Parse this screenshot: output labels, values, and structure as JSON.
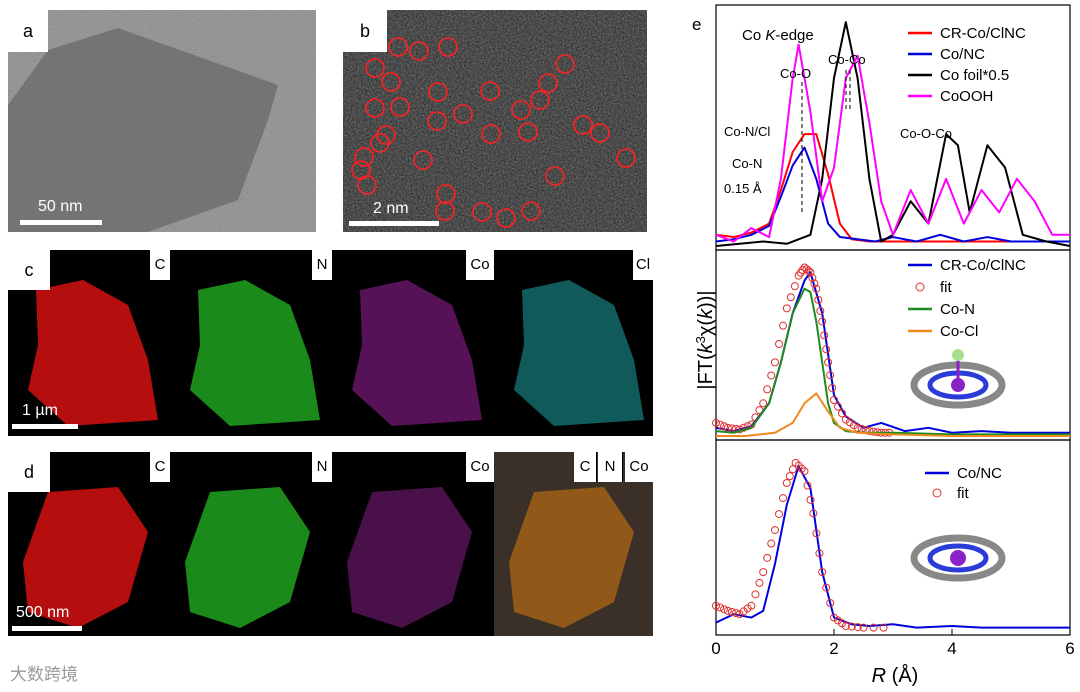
{
  "panels": {
    "a": {
      "label": "a",
      "scale": "50 nm"
    },
    "b": {
      "label": "b",
      "scale": "2 nm"
    },
    "c": {
      "label": "c",
      "scale": "1 µm",
      "maps": [
        "C",
        "N",
        "Co",
        "Cl"
      ]
    },
    "d": {
      "label": "d",
      "scale": "500 nm",
      "maps": [
        "C",
        "N",
        "Co"
      ],
      "overlay": [
        "C",
        "N",
        "Co"
      ]
    },
    "e": {
      "label": "e"
    }
  },
  "colors": {
    "cr": "#ff0000",
    "conc": "#0000dd",
    "foil": "#000000",
    "cooh": "#ff00ff",
    "con": "#1f8a1f",
    "cocl": "#f08a1c",
    "fit": "#e03030"
  },
  "chart_data": {
    "type": "line",
    "title": "Co K-edge",
    "xlabel": "R (Å)",
    "ylabel": "|FT(k³χ(k))|",
    "xlim": [
      0,
      6
    ],
    "xticks": [
      "0",
      "2",
      "4",
      "6"
    ],
    "subplots": [
      {
        "name": "top",
        "legend": [
          "CR-Co/ClNC",
          "Co/NC",
          "Co foil*0.5",
          "CoOOH"
        ],
        "annotations": [
          "Co-O",
          "Co-Co",
          "Co-N/Cl",
          "Co-N",
          "0.15 Å",
          "Co-O-Co"
        ],
        "series": [
          {
            "name": "CR-Co/ClNC",
            "color": "cr",
            "x": [
              0,
              0.3,
              0.6,
              0.9,
              1.1,
              1.3,
              1.5,
              1.7,
              1.9,
              2.1,
              2.3,
              2.6,
              3.0,
              3.5,
              4.0,
              4.5,
              5.0,
              5.5,
              6.0
            ],
            "y": [
              0.05,
              0.04,
              0.06,
              0.1,
              0.25,
              0.42,
              0.5,
              0.5,
              0.32,
              0.1,
              0.03,
              0.02,
              0.02,
              0.02,
              0.02,
              0.02,
              0.02,
              0.02,
              0.02
            ]
          },
          {
            "name": "Co/NC",
            "color": "conc",
            "x": [
              0,
              0.3,
              0.6,
              0.9,
              1.1,
              1.3,
              1.5,
              1.7,
              1.9,
              2.1,
              2.4,
              2.7,
              3.0,
              3.4,
              3.8,
              4.2,
              4.6,
              5.0,
              5.5,
              6.0
            ],
            "y": [
              0.02,
              0.03,
              0.05,
              0.09,
              0.22,
              0.36,
              0.44,
              0.3,
              0.1,
              0.04,
              0.03,
              0.02,
              0.04,
              0.02,
              0.05,
              0.02,
              0.04,
              0.02,
              0.02,
              0.02
            ]
          },
          {
            "name": "Co foil*0.5",
            "color": "foil",
            "x": [
              0,
              0.4,
              0.8,
              1.2,
              1.6,
              1.8,
              2.0,
              2.2,
              2.4,
              2.6,
              2.8,
              3.0,
              3.3,
              3.6,
              3.9,
              4.1,
              4.3,
              4.6,
              4.9,
              5.2,
              5.6,
              6.0
            ],
            "y": [
              0.0,
              0.01,
              0.02,
              0.01,
              0.05,
              0.3,
              0.75,
              1.0,
              0.75,
              0.3,
              0.02,
              0.05,
              0.2,
              0.1,
              0.5,
              0.45,
              0.15,
              0.45,
              0.35,
              0.05,
              0.02,
              0.0
            ]
          },
          {
            "name": "CoOOH",
            "color": "cooh",
            "x": [
              0,
              0.3,
              0.6,
              0.9,
              1.1,
              1.3,
              1.4,
              1.6,
              1.8,
              2.0,
              2.2,
              2.4,
              2.6,
              2.8,
              3.0,
              3.3,
              3.6,
              3.9,
              4.2,
              4.5,
              4.8,
              5.1,
              5.4,
              5.7,
              6.0
            ],
            "y": [
              0.05,
              0.02,
              0.08,
              0.04,
              0.3,
              0.75,
              0.9,
              0.6,
              0.2,
              0.35,
              0.75,
              0.85,
              0.55,
              0.2,
              0.05,
              0.25,
              0.1,
              0.3,
              0.1,
              0.25,
              0.15,
              0.3,
              0.2,
              0.05,
              0.05
            ]
          }
        ]
      },
      {
        "name": "middle",
        "legend": [
          "CR-Co/ClNC",
          "fit",
          "Co-N",
          "Co-Cl"
        ],
        "series": [
          {
            "name": "CR-Co/ClNC",
            "color": "conc",
            "x": [
              0,
              0.3,
              0.6,
              0.9,
              1.1,
              1.3,
              1.5,
              1.6,
              1.8,
              2.0,
              2.2,
              2.5,
              2.8,
              3.2,
              3.6,
              4.0,
              4.5,
              5.0,
              5.5,
              6.0
            ],
            "y": [
              0.05,
              0.03,
              0.06,
              0.2,
              0.45,
              0.75,
              0.95,
              1.0,
              0.75,
              0.25,
              0.12,
              0.05,
              0.08,
              0.03,
              0.05,
              0.02,
              0.03,
              0.02,
              0.02,
              0.02
            ]
          },
          {
            "name": "fit",
            "color": "fit",
            "x": [
              0,
              0.2,
              0.4,
              0.6,
              0.8,
              1.0,
              1.2,
              1.4,
              1.5,
              1.6,
              1.7,
              1.8,
              1.9,
              2.0,
              2.2,
              2.4,
              2.6,
              2.8,
              3.0
            ],
            "y": [
              0.08,
              0.05,
              0.04,
              0.07,
              0.2,
              0.45,
              0.78,
              0.98,
              1.03,
              1.0,
              0.9,
              0.7,
              0.45,
              0.22,
              0.1,
              0.05,
              0.03,
              0.02,
              0.02
            ]
          },
          {
            "name": "Co-N",
            "color": "con",
            "x": [
              0,
              0.3,
              0.6,
              0.9,
              1.1,
              1.3,
              1.5,
              1.6,
              1.7,
              1.8,
              1.9,
              2.0,
              2.2,
              2.5,
              3.0,
              4.0,
              6.0
            ],
            "y": [
              0.03,
              0.02,
              0.05,
              0.2,
              0.45,
              0.75,
              0.9,
              0.88,
              0.7,
              0.45,
              0.2,
              0.08,
              0.03,
              0.02,
              0.02,
              0.01,
              0.01
            ]
          },
          {
            "name": "Co-Cl",
            "color": "cocl",
            "x": [
              0,
              0.5,
              1.0,
              1.3,
              1.5,
              1.7,
              1.9,
              2.1,
              2.4,
              3.0,
              4.0,
              6.0
            ],
            "y": [
              0.0,
              0.0,
              0.02,
              0.08,
              0.2,
              0.26,
              0.15,
              0.05,
              0.02,
              0.01,
              0.0,
              0.0
            ]
          }
        ]
      },
      {
        "name": "bottom",
        "legend": [
          "Co/NC",
          "fit"
        ],
        "series": [
          {
            "name": "Co/NC",
            "color": "conc",
            "x": [
              0,
              0.3,
              0.6,
              0.8,
              1.0,
              1.2,
              1.4,
              1.6,
              1.8,
              2.0,
              2.3,
              2.6,
              3.0,
              3.4,
              4.0,
              4.5,
              5.0,
              5.5,
              6.0
            ],
            "y": [
              0.05,
              0.1,
              0.08,
              0.12,
              0.4,
              0.75,
              0.98,
              0.85,
              0.35,
              0.08,
              0.04,
              0.03,
              0.04,
              0.02,
              0.03,
              0.02,
              0.02,
              0.02,
              0.02
            ]
          },
          {
            "name": "fit",
            "color": "fit",
            "x": [
              0,
              0.2,
              0.4,
              0.6,
              0.8,
              1.0,
              1.2,
              1.35,
              1.5,
              1.65,
              1.8,
              2.0,
              2.2,
              2.5,
              3.0
            ],
            "y": [
              0.15,
              0.12,
              0.1,
              0.15,
              0.35,
              0.6,
              0.88,
              1.0,
              0.95,
              0.7,
              0.35,
              0.08,
              0.03,
              0.02,
              0.02
            ]
          }
        ]
      }
    ]
  },
  "watermark": "大数跨境"
}
